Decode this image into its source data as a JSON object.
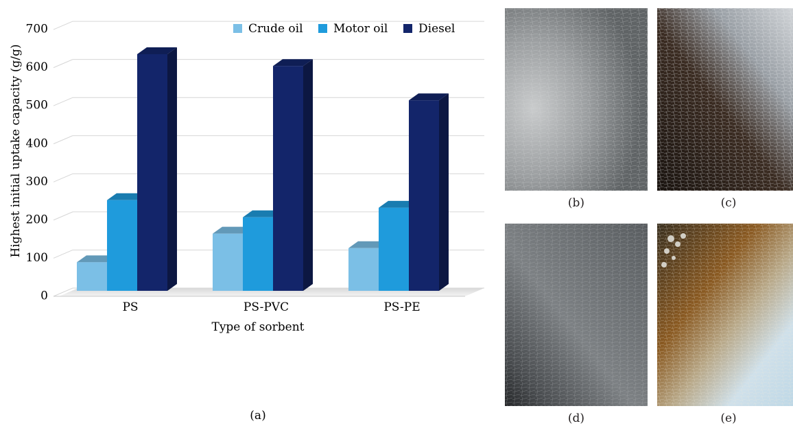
{
  "figure": {
    "panel_labels": {
      "a": "(a)",
      "b": "(b)",
      "c": "(c)",
      "d": "(d)",
      "e": "(e)"
    }
  },
  "chart_data": {
    "type": "bar",
    "style": "3d-clustered-column",
    "title": "",
    "xlabel": "Type of sorbent",
    "ylabel": "Highest initial uptake capacity (g/g)",
    "ylim": [
      0,
      700
    ],
    "yticks": [
      "0",
      "100",
      "200",
      "300",
      "400",
      "500",
      "600",
      "700"
    ],
    "grid": true,
    "legend_position": "top-right",
    "categories": [
      "PS",
      "PS-PVC",
      "PS-PE"
    ],
    "series": [
      {
        "name": "Crude oil",
        "color": "#7bbfe6",
        "values": [
          75,
          150,
          112
        ]
      },
      {
        "name": "Motor oil",
        "color": "#1f9bdc",
        "values": [
          238,
          193,
          218
        ]
      },
      {
        "name": "Diesel",
        "color": "#13256a",
        "values": [
          621,
          590,
          500
        ]
      }
    ]
  },
  "photos": [
    {
      "id": "b",
      "description_icon": "gray-fiber-photo"
    },
    {
      "id": "c",
      "description_icon": "dark-fiber-photo"
    },
    {
      "id": "d",
      "description_icon": "gray-fiber-dark-corner-photo"
    },
    {
      "id": "e",
      "description_icon": "fiber-amber-oil-photo"
    }
  ]
}
